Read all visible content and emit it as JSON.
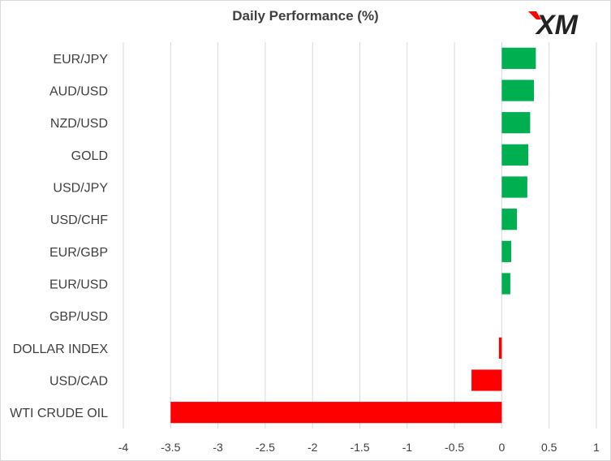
{
  "chart_data": {
    "type": "bar",
    "orientation": "horizontal",
    "title": "Daily Performance (%)",
    "categories": [
      "EUR/JPY",
      "AUD/USD",
      "NZD/USD",
      "GOLD",
      "USD/JPY",
      "USD/CHF",
      "EUR/GBP",
      "EUR/USD",
      "GBP/USD",
      "DOLLAR INDEX",
      "USD/CAD",
      "WTI CRUDE OIL"
    ],
    "values": [
      0.36,
      0.34,
      0.3,
      0.28,
      0.27,
      0.16,
      0.1,
      0.09,
      0.0,
      -0.03,
      -0.32,
      -3.5
    ],
    "xlim": [
      -4,
      1
    ],
    "xticks": [
      "-4",
      "-3.5",
      "-3",
      "-2.5",
      "-2",
      "-1.5",
      "-1",
      "-0.5",
      "0",
      "0.5",
      "1"
    ],
    "grid": "vertical",
    "colors": {
      "positive": "#00b050",
      "negative": "#ff0000"
    }
  },
  "logo": {
    "text": "XM",
    "accent": "#ff0000"
  }
}
